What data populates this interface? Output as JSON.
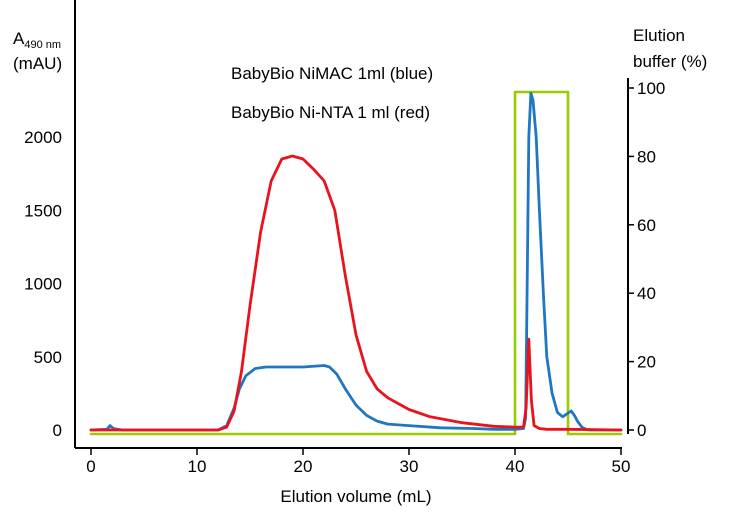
{
  "chart_data": {
    "type": "line",
    "annotations": [
      "BabyBio NiMAC 1ml (blue)",
      "BabyBio Ni-NTA 1 ml (red)"
    ],
    "left_axis": {
      "label_main": "A",
      "label_sub": "490 nm",
      "label_unit": "(mAU)",
      "ticks": [
        0,
        500,
        1000,
        1500,
        2000
      ],
      "ylim": [
        0,
        2400
      ]
    },
    "right_axis": {
      "label_line1": "Elution",
      "label_line2": "buffer (%)",
      "ticks": [
        0,
        20,
        40,
        60,
        80,
        100
      ],
      "ylim": [
        0,
        102
      ]
    },
    "x_axis": {
      "label": "Elution volume (mL)",
      "ticks": [
        0,
        10,
        20,
        30,
        40,
        50
      ],
      "xlim": [
        0,
        50
      ]
    },
    "series": [
      {
        "name": "BabyBio NiMAC 1ml",
        "axis": "left",
        "color": "#1f77c4",
        "x": [
          0,
          1.5,
          1.8,
          2.1,
          2.5,
          3,
          12,
          12.8,
          13.5,
          14,
          14.6,
          15.5,
          16.5,
          18,
          20,
          22,
          22.5,
          23.2,
          24,
          25,
          26,
          27,
          28,
          30,
          33,
          36,
          38,
          40,
          40.8,
          41,
          41.1,
          41.3,
          41.5,
          41.7,
          42,
          42.3,
          42.7,
          43,
          43.5,
          44,
          44.5,
          44.9,
          45.3,
          45.6,
          45.9,
          46.3,
          46.7,
          47,
          50
        ],
        "y": [
          0,
          5,
          30,
          10,
          5,
          0,
          0,
          30,
          150,
          280,
          370,
          420,
          430,
          430,
          430,
          440,
          430,
          380,
          280,
          170,
          100,
          60,
          40,
          30,
          15,
          10,
          5,
          5,
          10,
          80,
          700,
          2000,
          2300,
          2250,
          2000,
          1500,
          900,
          500,
          250,
          120,
          90,
          110,
          130,
          100,
          60,
          20,
          5,
          0,
          0
        ]
      },
      {
        "name": "BabyBio Ni-NTA 1 ml",
        "axis": "left",
        "color": "#e8131b",
        "x": [
          0,
          12,
          12.8,
          13.5,
          14.2,
          15,
          16,
          17,
          18,
          19,
          20,
          21,
          22,
          23,
          24,
          25,
          26,
          27,
          28,
          30,
          32,
          35,
          38,
          40,
          40.8,
          41.05,
          41.3,
          41.55,
          41.8,
          42.3,
          43,
          45,
          50
        ],
        "y": [
          0,
          0,
          20,
          130,
          400,
          850,
          1350,
          1700,
          1850,
          1870,
          1850,
          1780,
          1700,
          1500,
          1050,
          650,
          400,
          280,
          220,
          140,
          90,
          50,
          25,
          20,
          20,
          150,
          620,
          200,
          30,
          10,
          5,
          5,
          0
        ]
      },
      {
        "name": "",
        "axis": "right",
        "color": "#99cc00",
        "x": [
          0,
          40,
          40,
          45,
          45,
          50
        ],
        "y": [
          0,
          0,
          100,
          100,
          0,
          0
        ]
      }
    ]
  }
}
